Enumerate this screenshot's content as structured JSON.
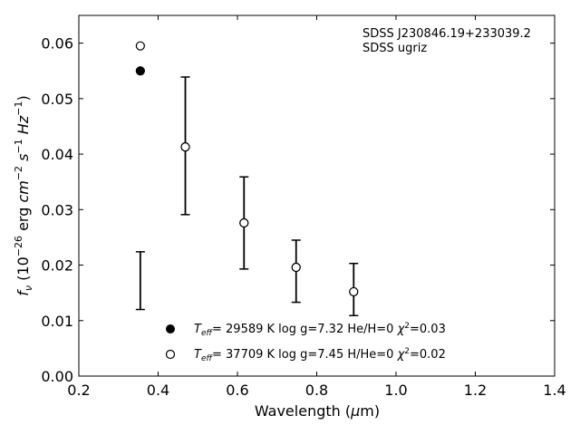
{
  "chart_data": {
    "type": "scatter",
    "xlabel": "Wavelength (μm)",
    "ylabel": "f_ν (10^-26 erg cm^-2 s^-1 Hz^-1)",
    "xlim": [
      0.2,
      1.4
    ],
    "ylim": [
      0.0,
      0.065
    ],
    "x_ticks": [
      "0.2",
      "0.4",
      "0.6",
      "0.8",
      "1.0",
      "1.2",
      "1.4"
    ],
    "y_ticks": [
      "0.00",
      "0.01",
      "0.02",
      "0.03",
      "0.04",
      "0.05",
      "0.06"
    ],
    "grid": false,
    "annotation": [
      "SDSS J230846.19+233039.2",
      "SDSS ugriz"
    ],
    "observed": {
      "x": [
        0.3551,
        0.4686,
        0.6166,
        0.748,
        0.8932
      ],
      "y": [
        0.0172,
        0.0415,
        0.0276,
        0.0189,
        0.0156
      ],
      "yerr": [
        0.0052,
        0.0124,
        0.0083,
        0.0056,
        0.0047
      ]
    },
    "series": [
      {
        "name": "T_eff= 29589 K  log g=7.32  He/H=0  χ²=0.03",
        "marker": "filled-circle",
        "x": [
          0.3551,
          0.4686,
          0.6166,
          0.748,
          0.8932
        ],
        "y": [
          0.055,
          0.0413,
          0.0276,
          0.0196,
          0.0152
        ]
      },
      {
        "name": "T_eff= 37709 K  log g=7.45  H/He=0  χ²=0.02",
        "marker": "open-circle",
        "x": [
          0.3551,
          0.4686,
          0.6166,
          0.748,
          0.8932
        ],
        "y": [
          0.0595,
          0.0413,
          0.0276,
          0.0196,
          0.0152
        ]
      }
    ],
    "legend_location": "lower center",
    "colors": {
      "markers": "#000000",
      "axes": "#000000"
    }
  }
}
